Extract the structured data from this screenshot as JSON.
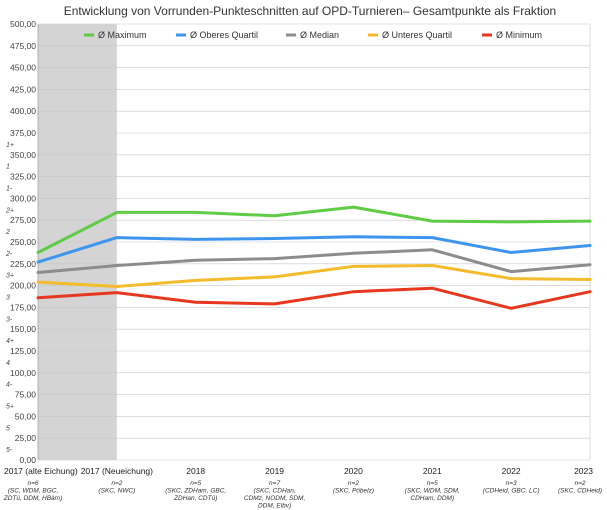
{
  "chart_data": {
    "type": "line",
    "title": "Entwicklung von Vorrunden-Punkteschnitten auf OPD-Turnieren– Gesamtpunkte als Fraktion",
    "xlabel": "",
    "ylabel": "",
    "ylim": [
      0,
      500
    ],
    "ytick_labels": [
      "0,00",
      "25,00",
      "50,00",
      "75,00",
      "100,00",
      "125,00",
      "150,00",
      "175,00",
      "200,00",
      "225,00",
      "250,00",
      "275,00",
      "300,00",
      "325,00",
      "350,00",
      "375,00",
      "400,00",
      "425,00",
      "450,00",
      "475,00",
      "500,00"
    ],
    "grade_labels": [
      {
        "label": "5-",
        "value": 12.5
      },
      {
        "label": "5",
        "value": 37.5
      },
      {
        "label": "5+",
        "value": 62.5
      },
      {
        "label": "4-",
        "value": 87.5
      },
      {
        "label": "4",
        "value": 112.5
      },
      {
        "label": "4+",
        "value": 137.5
      },
      {
        "label": "3-",
        "value": 162.5
      },
      {
        "label": "3",
        "value": 187.5
      },
      {
        "label": "3+",
        "value": 212.5
      },
      {
        "label": "2-",
        "value": 237.5
      },
      {
        "label": "2",
        "value": 262.5
      },
      {
        "label": "2+",
        "value": 287.5
      },
      {
        "label": "1-",
        "value": 312.5
      },
      {
        "label": "1",
        "value": 337.5
      },
      {
        "label": "1+",
        "value": 362.5
      }
    ],
    "categories": [
      "2017 (alte Eichung)",
      "2017 (Neueichung)",
      "2018",
      "2019",
      "2020",
      "2021",
      "2022",
      "2023"
    ],
    "category_notes": [
      [
        "n=6",
        "(SC, WDM, BGC,",
        "ZDTü, DDM, HBäm)"
      ],
      [
        "n=2",
        "(SKC, NWC)"
      ],
      [
        "n=5",
        "(SKC, ZDHam, GBC,",
        "ZDHan, CDTü)"
      ],
      [
        "n=7",
        "(SKC, CDHan,",
        "CDMz, NODM, SDM,",
        "DDM, Elbv)"
      ],
      [
        "n=2",
        "(SKC, Pöbelz)"
      ],
      [
        "n=5",
        "(SKC, WDM, SDM,",
        "CDHam, DDM)"
      ],
      [
        "n=3",
        "(CDHeid, GBC, LC)"
      ],
      [
        "n=2",
        "(SKC, CDHeid)"
      ]
    ],
    "shaded_categories": [
      "2017 (alte Eichung)",
      "2017 (Neueichung)"
    ],
    "legend_position": "top",
    "grid": true,
    "series": [
      {
        "name": "Ø Maximum",
        "color": "#5fcc45",
        "values": [
          238,
          284,
          284,
          280,
          290,
          274,
          273,
          274
        ]
      },
      {
        "name": "Ø Oberes Quartil",
        "color": "#3e95ee",
        "values": [
          227,
          255,
          253,
          254,
          256,
          255,
          238,
          246
        ]
      },
      {
        "name": "Ø Median",
        "color": "#8c8c8c",
        "values": [
          215,
          223,
          229,
          231,
          237,
          241,
          216,
          224
        ]
      },
      {
        "name": "Ø Unteres Quartil",
        "color": "#f4bb2c",
        "values": [
          204,
          199,
          206,
          210,
          222,
          223,
          208,
          207
        ]
      },
      {
        "name": "Ø Minimum",
        "color": "#e8371f",
        "values": [
          186,
          192,
          181,
          179,
          193,
          197,
          174,
          193
        ]
      }
    ]
  }
}
